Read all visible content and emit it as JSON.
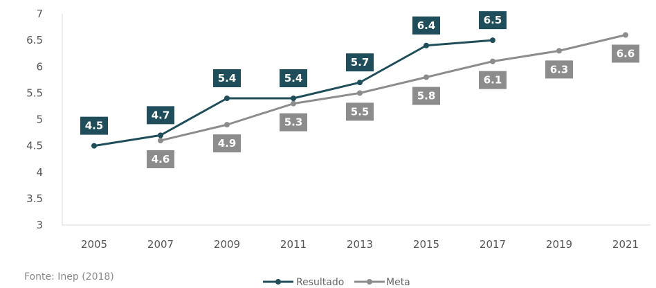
{
  "chart_data": {
    "type": "line",
    "categories": [
      "2005",
      "2007",
      "2009",
      "2011",
      "2013",
      "2015",
      "2017",
      "2019",
      "2021"
    ],
    "series": [
      {
        "name": "Resultado",
        "color": "#1f4e5a",
        "values": [
          4.5,
          4.7,
          5.4,
          5.4,
          5.7,
          6.4,
          6.5,
          null,
          null
        ],
        "labels": [
          "4.5",
          "4.7",
          "5.4",
          "5.4",
          "5.7",
          "6.4",
          "6.5",
          null,
          null
        ]
      },
      {
        "name": "Meta",
        "color": "#8c8c8c",
        "values": [
          null,
          4.6,
          4.9,
          5.3,
          5.5,
          5.8,
          6.1,
          6.3,
          6.6
        ],
        "labels": [
          null,
          "4.6",
          "4.9",
          "5.3",
          "5.5",
          "5.8",
          "6.1",
          "6.3",
          "6.6"
        ]
      }
    ],
    "y_ticks": [
      "3",
      "3.5",
      "4",
      "4.5",
      "5",
      "5.5",
      "6",
      "6.5",
      "7"
    ],
    "ylim": [
      3,
      7
    ],
    "grid": false,
    "legend": "bottom-center"
  },
  "source_note": "Fonte: Inep (2018)"
}
